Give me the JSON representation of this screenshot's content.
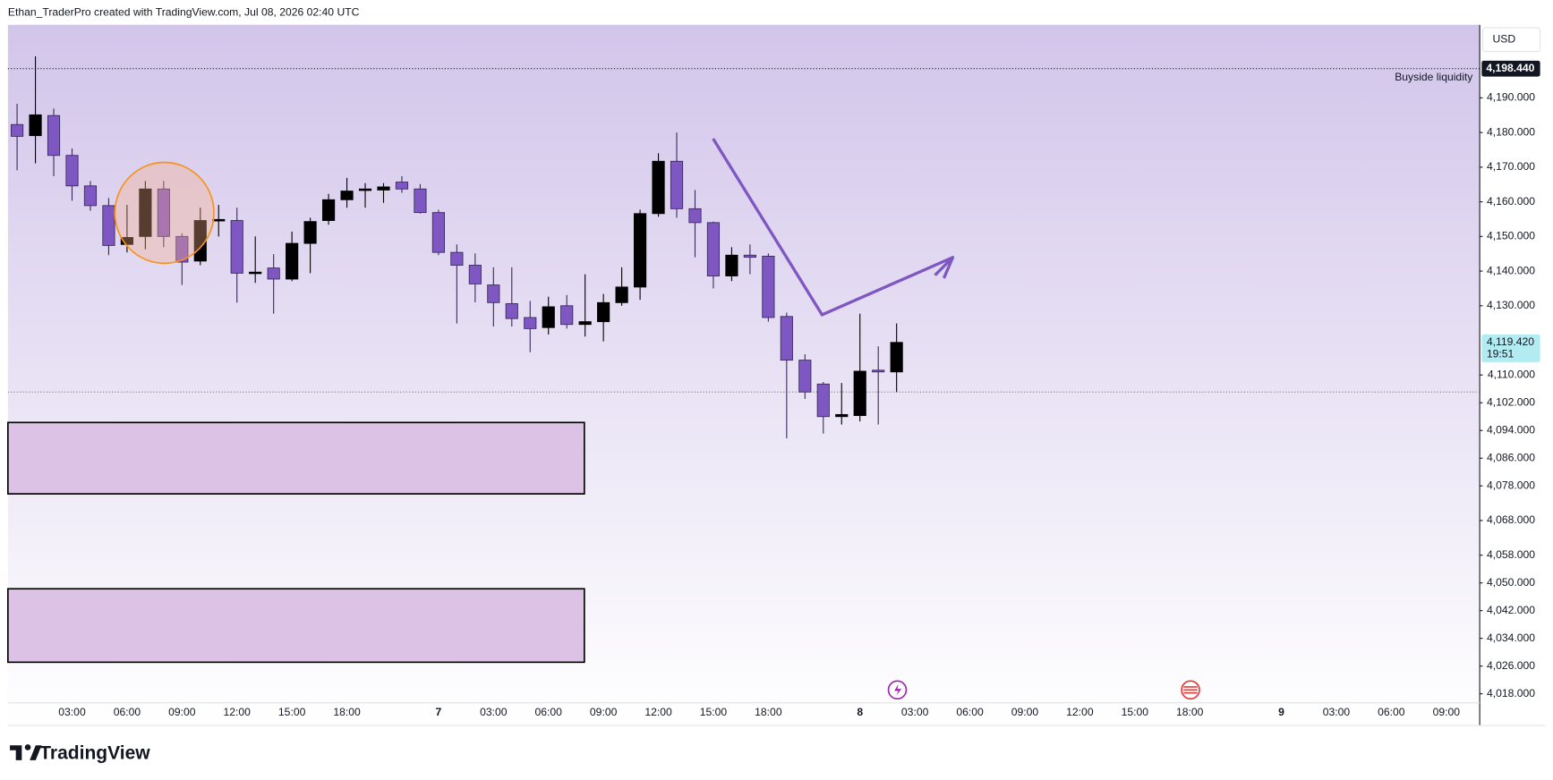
{
  "chart_data": {
    "type": "candlestick",
    "attribution": "Ethan_TraderPro created with TradingView.com, Jul 08, 2026 02:40 UTC",
    "brand": "TradingView",
    "currency": "USD",
    "up_color": "#000000",
    "down_color": "#7e57c2",
    "grid": false,
    "categories": [
      null,
      null,
      null,
      "03:00",
      null,
      null,
      "06:00",
      null,
      null,
      "09:00",
      null,
      null,
      "12:00",
      null,
      null,
      "15:00",
      null,
      null,
      "18:00",
      null,
      null,
      null,
      null,
      "7",
      null,
      null,
      "03:00",
      null,
      null,
      "06:00",
      null,
      null,
      "09:00",
      null,
      null,
      "12:00",
      null,
      null,
      "15:00",
      null,
      null,
      "18:00",
      null,
      null,
      null,
      null,
      "8",
      null,
      null,
      "03:00",
      null,
      null,
      "06:00",
      null,
      null,
      "09:00",
      null,
      null,
      "12:00",
      null,
      null,
      "15:00",
      null,
      null,
      "18:00",
      null,
      null,
      null,
      null,
      "9",
      null,
      null,
      "03:00",
      null,
      null,
      "06:00",
      null,
      null,
      "09:00",
      null
    ],
    "open": [
      4182.3,
      4179.1,
      4184.9,
      4173.4,
      4164.6,
      4158.9,
      4147.7,
      4150,
      4163.7,
      4150,
      4142.9,
      4154.6,
      4154.6,
      4139.4,
      4140.9,
      4137.7,
      4148,
      4154.6,
      4160.6,
      4163.4,
      4163.4,
      4165.7,
      4163.7,
      4156.9,
      4145.4,
      4141.7,
      4136,
      4130.6,
      4126.6,
      4123.7,
      4130,
      4124.6,
      4125.4,
      4130.9,
      4135.4,
      4156.6,
      4171.7,
      4158,
      4154,
      4138.6,
      4144.6,
      4144.3,
      4126.9,
      4114.3,
      4107.4,
      4098,
      4098.3,
      4111.4,
      4110.9,
      null,
      null,
      null,
      null,
      null,
      null,
      null,
      null,
      null,
      null,
      null,
      null,
      null,
      null,
      null,
      null,
      null,
      null,
      null,
      null,
      null,
      null,
      null,
      null,
      null,
      null,
      null,
      null,
      null,
      null,
      null
    ],
    "high": [
      4188.3,
      4202,
      4186.9,
      4175.4,
      4166,
      4161.1,
      4159.1,
      4166,
      4166,
      4150.9,
      4158.3,
      4159.1,
      4158.3,
      4150,
      4144.9,
      4151.4,
      4155.4,
      4162.3,
      4166.9,
      4165.4,
      4165.4,
      4167.4,
      4165.1,
      4157.7,
      4147.7,
      4145.1,
      4141.1,
      4141.1,
      4131.4,
      4132.6,
      4133.1,
      4139.1,
      4133.4,
      4141.1,
      4157.7,
      4174,
      4180,
      4163.4,
      4154.3,
      4146.9,
      4147.7,
      4145.1,
      4128,
      4116,
      4108,
      4107.7,
      4127.7,
      4118.3,
      4124.9,
      null,
      null,
      null,
      null,
      null,
      null,
      null,
      null,
      null,
      null,
      null,
      null,
      null,
      null,
      null,
      null,
      null,
      null,
      null,
      null,
      null,
      null,
      null,
      null,
      null,
      null,
      null,
      null,
      null,
      null,
      null
    ],
    "low": [
      4169.1,
      4171.1,
      4167.4,
      4160.3,
      4157.4,
      4144.6,
      4145.4,
      4146.3,
      4146.9,
      4136,
      4141.7,
      4150,
      4130.9,
      4136.6,
      4127.7,
      4137.1,
      4139.4,
      4153.4,
      4158.3,
      4158.3,
      4159.7,
      4162.6,
      4156.6,
      4144.6,
      4124.9,
      4131,
      4124,
      4124,
      4116.6,
      4121.7,
      4123.4,
      4121.1,
      4119.7,
      4130,
      4131.7,
      4155.7,
      4155.4,
      4144,
      4135,
      4137.1,
      4139.1,
      4125.4,
      4091.7,
      4103.1,
      4093.1,
      4095.7,
      4096.6,
      4095.7,
      4105.1,
      null,
      null,
      null,
      null,
      null,
      null,
      null,
      null,
      null,
      null,
      null,
      null,
      null,
      null,
      null,
      null,
      null,
      null,
      null,
      null,
      null,
      null,
      null,
      null,
      null,
      null,
      null,
      null,
      null,
      null,
      null
    ],
    "close": [
      4178.9,
      4185.1,
      4173.4,
      4164.6,
      4158.9,
      4147.4,
      4149.7,
      4163.7,
      4150,
      4142.6,
      4154.6,
      4154.9,
      4139.4,
      4139.7,
      4137.7,
      4148,
      4154.3,
      4160.6,
      4163.1,
      4163.7,
      4164.3,
      4163.7,
      4156.9,
      4145.4,
      4141.7,
      4136.3,
      4130.9,
      4126.3,
      4123.4,
      4129.7,
      4124.6,
      4125.4,
      4130.9,
      4135.4,
      4156.6,
      4171.7,
      4158,
      4154,
      4138.6,
      4144.6,
      4144,
      4126.6,
      4114.3,
      4105.1,
      4098,
      4098.6,
      4111.1,
      4110.9,
      4119.42,
      null,
      null,
      null,
      null,
      null,
      null,
      null,
      null,
      null,
      null,
      null,
      null,
      null,
      null,
      null,
      null,
      null,
      null,
      null,
      null,
      null,
      null,
      null,
      null,
      null,
      null,
      null,
      null,
      null,
      null,
      null
    ],
    "ylim": [
      4015.4,
      4211.1
    ],
    "yticks": [
      {
        "value": 4018,
        "label": "4,018.000"
      },
      {
        "value": 4026,
        "label": "4,026.000"
      },
      {
        "value": 4034,
        "label": "4,034.000"
      },
      {
        "value": 4042,
        "label": "4,042.000"
      },
      {
        "value": 4050,
        "label": "4,050.000"
      },
      {
        "value": 4058,
        "label": "4,058.000"
      },
      {
        "value": 4068,
        "label": "4,068.000"
      },
      {
        "value": 4078,
        "label": "4,078.000"
      },
      {
        "value": 4086,
        "label": "4,086.000"
      },
      {
        "value": 4094,
        "label": "4,094.000"
      },
      {
        "value": 4102,
        "label": "4,102.000"
      },
      {
        "value": 4110,
        "label": "4,110.000"
      },
      {
        "value": 4130,
        "label": "4,130.000"
      },
      {
        "value": 4140,
        "label": "4,140.000"
      },
      {
        "value": 4150,
        "label": "4,150.000"
      },
      {
        "value": 4160,
        "label": "4,160.000"
      },
      {
        "value": 4170,
        "label": "4,170.000"
      },
      {
        "value": 4180,
        "label": "4,180.000"
      },
      {
        "value": 4190,
        "label": "4,190.000"
      }
    ],
    "hlines": [
      {
        "value": 4198.44,
        "label": "4,198.440",
        "text": "Buyside liquidity"
      }
    ],
    "last_price": {
      "value": 4119.42,
      "label": "4,119.420",
      "countdown": "19:51"
    },
    "dotted_line": 4105.1,
    "zones": [
      {
        "top": 4096.3,
        "bottom": 4075.7
      },
      {
        "top": 4048.3,
        "bottom": 4027.1
      }
    ]
  }
}
